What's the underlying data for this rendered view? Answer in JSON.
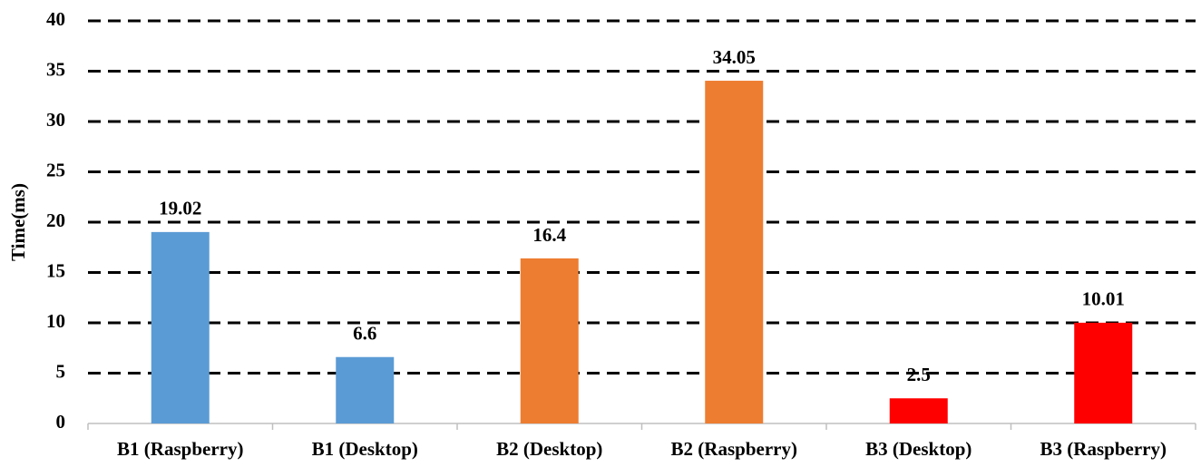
{
  "chart_data": {
    "type": "bar",
    "ylabel": "Time(ms)",
    "categories": [
      "B1 (Raspberry)",
      "B1 (Desktop)",
      "B2 (Desktop)",
      "B2 (Raspberry)",
      "B3 (Desktop)",
      "B3 (Raspberry)"
    ],
    "values": [
      19.02,
      6.6,
      16.4,
      34.05,
      2.5,
      10.01
    ],
    "colors": [
      "#5b9bd5",
      "#5b9bd5",
      "#ed7d31",
      "#ed7d31",
      "#ff0000",
      "#ff0000"
    ],
    "ylim": [
      0,
      40
    ],
    "yticks": [
      0,
      5,
      10,
      15,
      20,
      25,
      30,
      35,
      40
    ],
    "grid": true
  }
}
